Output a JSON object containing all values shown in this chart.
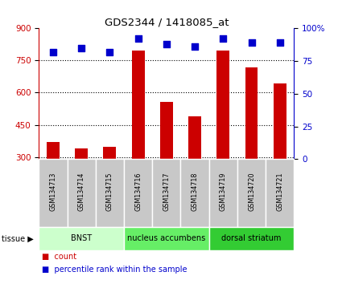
{
  "title": "GDS2344 / 1418085_at",
  "samples": [
    "GSM134713",
    "GSM134714",
    "GSM134715",
    "GSM134716",
    "GSM134717",
    "GSM134718",
    "GSM134719",
    "GSM134720",
    "GSM134721"
  ],
  "counts": [
    370,
    338,
    348,
    795,
    558,
    488,
    795,
    718,
    643
  ],
  "percentiles": [
    82,
    85,
    82,
    92,
    88,
    86,
    92,
    89,
    89
  ],
  "ylim_left": [
    290,
    900
  ],
  "ylim_right": [
    0,
    100
  ],
  "yticks_left": [
    300,
    450,
    600,
    750,
    900
  ],
  "yticks_right": [
    0,
    25,
    50,
    75,
    100
  ],
  "tissues": [
    {
      "label": "BNST",
      "start": 0,
      "end": 3,
      "color": "#ccffcc"
    },
    {
      "label": "nucleus accumbens",
      "start": 3,
      "end": 6,
      "color": "#66ee66"
    },
    {
      "label": "dorsal striatum",
      "start": 6,
      "end": 9,
      "color": "#33cc33"
    }
  ],
  "bar_color": "#cc0000",
  "marker_color": "#0000cc",
  "bg_color": "#c8c8c8",
  "plot_bg": "#ffffff",
  "left_axis_color": "#cc0000",
  "right_axis_color": "#0000cc"
}
